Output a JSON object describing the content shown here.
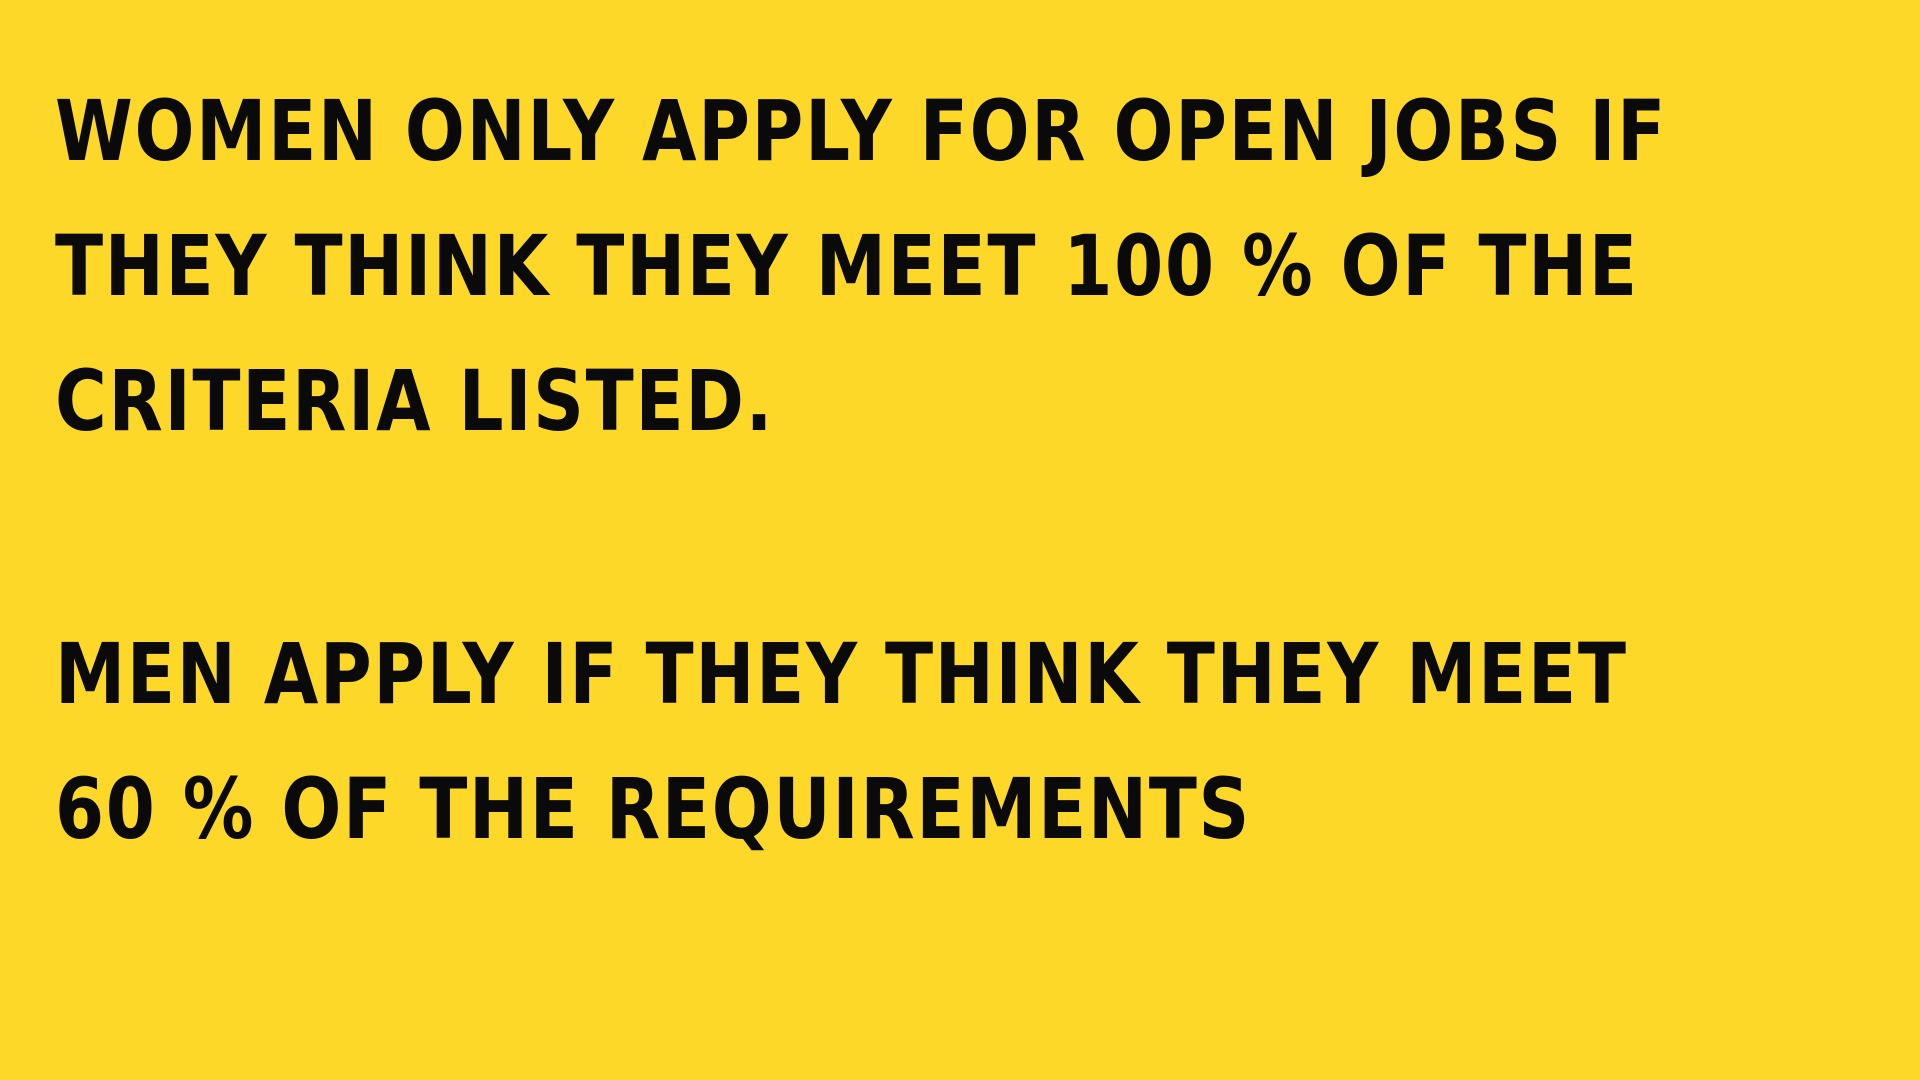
{
  "colors": {
    "background": "#FED829",
    "text": "#0a0a0a"
  },
  "statements": {
    "women": {
      "lines": [
        "WOMEN ONLY APPLY FOR OPEN JOBS IF",
        "THEY THINK THEY MEET 100 % OF THE",
        "CRITERIA LISTED."
      ]
    },
    "men": {
      "lines": [
        "MEN APPLY IF THEY THINK THEY MEET",
        "60 % OF THE REQUIREMENTS"
      ]
    }
  }
}
